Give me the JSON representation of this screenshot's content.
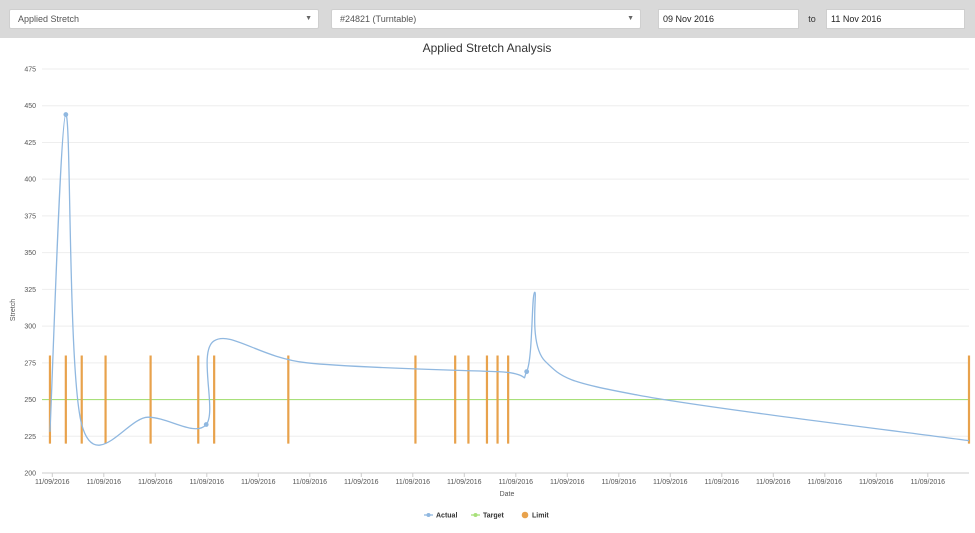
{
  "toolbar": {
    "metric_select": "Applied Stretch",
    "machine_select": "#24821 (Turntable)",
    "date_from": "09 Nov 2016",
    "to_label": "to",
    "date_to": "11 Nov 2016"
  },
  "colors": {
    "actual": "#90b8e0",
    "target": "#a8e07a",
    "limit": "#e8a24c",
    "grid": "#eeeeee",
    "toolbar": "#d9d9d9"
  },
  "chart_data": {
    "type": "line",
    "title": "Applied Stretch Analysis",
    "xlabel": "Date",
    "ylabel": "Stretch",
    "ylim": [
      200,
      475
    ],
    "yticks": [
      200,
      225,
      250,
      275,
      300,
      325,
      350,
      375,
      400,
      425,
      450,
      475
    ],
    "xtick_labels": [
      "11/09/2016",
      "11/09/2016",
      "11/09/2016",
      "11/09/2016",
      "11/09/2016",
      "11/09/2016",
      "11/09/2016",
      "11/09/2016",
      "11/09/2016",
      "11/09/2016",
      "11/09/2016",
      "11/09/2016",
      "11/09/2016",
      "11/09/2016",
      "11/09/2016",
      "11/09/2016",
      "11/09/2016",
      "11/09/2016"
    ],
    "grid": true,
    "legend_position": "bottom",
    "series": [
      {
        "name": "Actual",
        "values": [
          [
            0.3,
            228
          ],
          [
            0.9,
            444
          ],
          [
            1.5,
            233
          ],
          [
            4.0,
            238
          ],
          [
            6.2,
            233
          ],
          [
            6.5,
            290
          ],
          [
            10,
            275
          ],
          [
            17.2,
            269
          ],
          [
            18.3,
            269
          ],
          [
            18.6,
            323
          ],
          [
            19,
            276
          ],
          [
            22.5,
            253
          ],
          [
            35,
            222
          ]
        ]
      },
      {
        "name": "Target",
        "values": [
          [
            0,
            250
          ],
          [
            35,
            250
          ]
        ]
      },
      {
        "name": "Limit",
        "limit_range": [
          220,
          280
        ],
        "x": [
          0.3,
          0.9,
          1.5,
          2.4,
          4.1,
          5.9,
          6.5,
          9.3,
          14.1,
          15.6,
          16.1,
          16.8,
          17.2,
          17.6,
          35
        ]
      }
    ]
  }
}
